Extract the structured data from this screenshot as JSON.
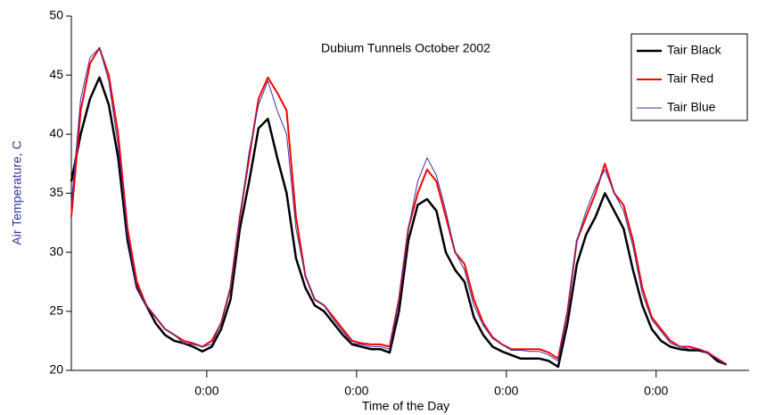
{
  "chart_data": {
    "type": "line",
    "title": "Dubium Tunnels October 2002",
    "x_label": "Time of the Day",
    "y_label": "Air Temperature, C",
    "x": [
      0,
      1.5,
      3,
      4.5,
      6,
      7.5,
      9,
      10.5,
      12,
      13.5,
      15,
      16.5,
      18,
      19.5,
      21,
      22.5,
      24,
      25.5,
      27,
      28.5,
      30,
      31.5,
      33,
      34.5,
      36,
      37.5,
      39,
      40.5,
      42,
      43.5,
      45,
      46.5,
      48,
      49.5,
      51,
      52.5,
      54,
      55.5,
      57,
      58.5,
      60,
      61.5,
      63,
      64.5,
      66,
      67.5,
      69,
      70.5,
      72,
      73.5,
      75,
      76.5,
      78,
      79.5,
      81,
      82.5,
      84,
      85.5,
      87,
      88.5,
      90,
      91.5,
      93,
      94.5,
      96,
      97.5,
      99,
      100.5,
      102,
      103.5,
      105
    ],
    "series": [
      {
        "name": "Tair Black",
        "color": "#000000",
        "width": 2.5,
        "values": [
          36,
          40,
          43,
          44.8,
          42.5,
          38,
          31,
          27,
          25.5,
          24,
          23,
          22.5,
          22.3,
          22,
          21.6,
          22,
          23.5,
          26,
          32,
          36,
          40.5,
          41.3,
          38,
          35,
          29.5,
          27,
          25.5,
          25,
          24,
          23,
          22.2,
          22,
          21.8,
          21.8,
          21.5,
          25,
          31,
          34,
          34.5,
          33.5,
          30,
          28.5,
          27.5,
          24.5,
          23,
          22,
          21.6,
          21.3,
          21,
          21,
          21,
          20.8,
          20.3,
          24,
          29,
          31.5,
          33,
          35,
          33.5,
          32,
          28.5,
          25.5,
          23.5,
          22.5,
          22,
          21.8,
          21.7,
          21.7,
          21.5,
          20.8,
          20.5
        ]
      },
      {
        "name": "Tair Red",
        "color": "#ff0000",
        "width": 2,
        "values": [
          33,
          42,
          46,
          47.3,
          45,
          40,
          32,
          27.5,
          25.5,
          24.5,
          23.5,
          23,
          22.5,
          22.3,
          22,
          22.5,
          24,
          27,
          33,
          38,
          43,
          44.8,
          43.5,
          42,
          33,
          28,
          26,
          25.5,
          24.5,
          23.5,
          22.5,
          22.3,
          22.2,
          22.2,
          22,
          26,
          32,
          35,
          37,
          36,
          33,
          30,
          29,
          26,
          24,
          22.8,
          22.2,
          21.8,
          21.8,
          21.8,
          21.8,
          21.5,
          21,
          25,
          31,
          33,
          35,
          37.5,
          35,
          34,
          31,
          27,
          24.5,
          23.5,
          22.5,
          22,
          22,
          21.8,
          21.5,
          21,
          20.5
        ]
      },
      {
        "name": "Tair Blue",
        "color": "#3333aa",
        "width": 1,
        "values": [
          34,
          43,
          46.5,
          47.3,
          44.5,
          39,
          31.5,
          27,
          25.5,
          24.5,
          23.5,
          23,
          22.3,
          22.2,
          22,
          22.2,
          24,
          27,
          33,
          38.5,
          42.5,
          44.5,
          42,
          40,
          32,
          28,
          26,
          25.5,
          24.3,
          23.3,
          22.3,
          22.2,
          22,
          22,
          21.8,
          26,
          32,
          36,
          38,
          36.5,
          33.5,
          30,
          28.5,
          25.5,
          23.8,
          22.7,
          22.2,
          21.7,
          21.7,
          21.6,
          21.6,
          21.3,
          20.8,
          25,
          31,
          33.5,
          35.5,
          37,
          35,
          33.5,
          30.5,
          26.5,
          24.3,
          23.3,
          22.3,
          22,
          21.8,
          21.8,
          21.4,
          21,
          20.5
        ]
      }
    ],
    "xlim": [
      0,
      108.6
    ],
    "xticks": [
      {
        "value": 21.7,
        "label": "0:00"
      },
      {
        "value": 45.7,
        "label": "0:00"
      },
      {
        "value": 69.7,
        "label": "0:00"
      },
      {
        "value": 93.7,
        "label": "0:00"
      }
    ],
    "ylim": [
      20,
      50
    ],
    "yticks": [
      20,
      25,
      30,
      35,
      40,
      45,
      50
    ],
    "legend": "top-right"
  }
}
